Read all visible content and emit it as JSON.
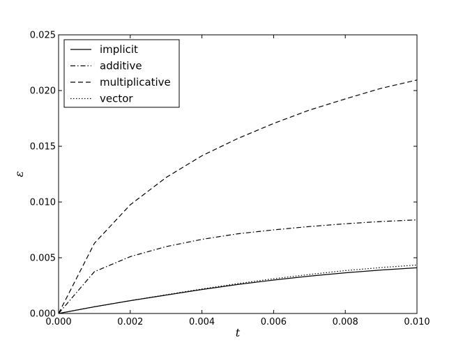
{
  "chart_data": {
    "type": "line",
    "xlabel": "t",
    "ylabel": "ε",
    "xlim": [
      0,
      0.01
    ],
    "ylim": [
      0,
      0.025
    ],
    "xticks": [
      "0.000",
      "0.002",
      "0.004",
      "0.006",
      "0.008",
      "0.010"
    ],
    "yticks": [
      "0.000",
      "0.005",
      "0.010",
      "0.015",
      "0.020",
      "0.025"
    ],
    "legend_position": "top-left",
    "grid": false,
    "x": [
      0,
      0.001,
      0.002,
      0.003,
      0.004,
      0.005,
      0.006,
      0.007,
      0.008,
      0.009,
      0.01
    ],
    "series": [
      {
        "name": "implicit",
        "style": "solid",
        "values": [
          0,
          0.0006,
          0.00115,
          0.00165,
          0.00215,
          0.0026,
          0.003,
          0.00335,
          0.00365,
          0.0039,
          0.0041
        ]
      },
      {
        "name": "additive",
        "style": "dashdot",
        "values": [
          0,
          0.00375,
          0.0051,
          0.006,
          0.00665,
          0.00715,
          0.0075,
          0.0078,
          0.00805,
          0.00825,
          0.0084
        ]
      },
      {
        "name": "multiplicative",
        "style": "dashed",
        "values": [
          0,
          0.0063,
          0.00975,
          0.0122,
          0.01415,
          0.0157,
          0.01705,
          0.01825,
          0.01925,
          0.0202,
          0.02095
        ]
      },
      {
        "name": "vector",
        "style": "dotted",
        "values": [
          0,
          0.0006,
          0.00115,
          0.00168,
          0.0022,
          0.00268,
          0.00312,
          0.0035,
          0.00385,
          0.00412,
          0.00435
        ]
      }
    ]
  }
}
